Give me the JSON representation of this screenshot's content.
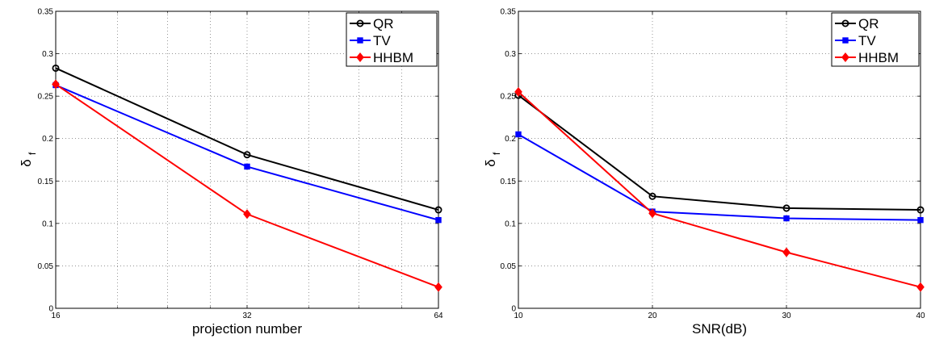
{
  "chart_data": [
    {
      "type": "line",
      "x_scale": "log2",
      "xlabel": "projection number",
      "ylabel": "δ",
      "ylabel_sub": "f",
      "xlim": [
        16,
        64
      ],
      "ylim": [
        0,
        0.35
      ],
      "xticks": [
        16,
        32,
        64
      ],
      "xtick_labels": [
        "16",
        "32",
        "64"
      ],
      "yticks": [
        0,
        0.05,
        0.1,
        0.15,
        0.2,
        0.25,
        0.3,
        0.35
      ],
      "ytick_labels": [
        "0",
        "0.05",
        "0.1",
        "0.15",
        "0.2",
        "0.25",
        "0.3",
        "0.35"
      ],
      "grid": true,
      "legend_position": "top-right",
      "x": [
        16,
        32,
        64
      ],
      "series": [
        {
          "name": "QR",
          "values": [
            0.283,
            0.181,
            0.116
          ],
          "color": "#000000",
          "marker": "circle"
        },
        {
          "name": "TV",
          "values": [
            0.263,
            0.167,
            0.104
          ],
          "color": "#0000ff",
          "marker": "square"
        },
        {
          "name": "HHBM",
          "values": [
            0.264,
            0.111,
            0.025
          ],
          "color": "#ff0000",
          "marker": "diamond"
        }
      ]
    },
    {
      "type": "line",
      "x_scale": "linear",
      "xlabel": "SNR(dB)",
      "ylabel": "δ",
      "ylabel_sub": "f",
      "xlim": [
        10,
        40
      ],
      "ylim": [
        0,
        0.35
      ],
      "xticks": [
        10,
        20,
        30,
        40
      ],
      "xtick_labels": [
        "10",
        "20",
        "30",
        "40"
      ],
      "yticks": [
        0,
        0.05,
        0.1,
        0.15,
        0.2,
        0.25,
        0.3,
        0.35
      ],
      "ytick_labels": [
        "0",
        "0.05",
        "0.1",
        "0.15",
        "0.2",
        "0.25",
        "0.3",
        "0.35"
      ],
      "grid": true,
      "legend_position": "top-right",
      "x": [
        10,
        20,
        30,
        40
      ],
      "series": [
        {
          "name": "QR",
          "values": [
            0.251,
            0.132,
            0.118,
            0.116
          ],
          "color": "#000000",
          "marker": "circle"
        },
        {
          "name": "TV",
          "values": [
            0.205,
            0.114,
            0.106,
            0.104
          ],
          "color": "#0000ff",
          "marker": "square"
        },
        {
          "name": "HHBM",
          "values": [
            0.255,
            0.112,
            0.066,
            0.025
          ],
          "color": "#ff0000",
          "marker": "diamond"
        }
      ]
    }
  ]
}
